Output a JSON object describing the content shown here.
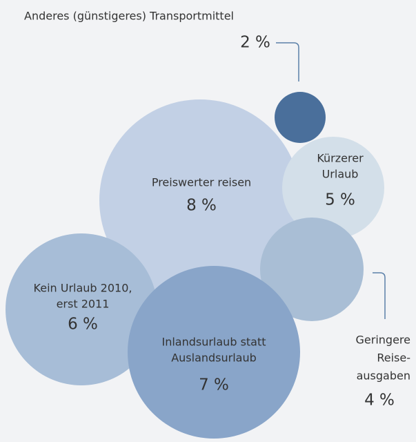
{
  "chart_data": {
    "type": "bubble",
    "items": [
      {
        "label": [
          "Preiswerter reisen"
        ],
        "value": 8,
        "value_label": "8 %",
        "color": "#bfcde4"
      },
      {
        "label": [
          "Kürzerer",
          "Urlaub"
        ],
        "value": 5,
        "value_label": "5 %",
        "color": "#d3dfe9"
      },
      {
        "label": [
          "Geringere",
          "Reise-",
          "ausgaben"
        ],
        "value": 4,
        "value_label": "4 %",
        "color": "#a9bed5"
      },
      {
        "label": [
          "Kein Urlaub 2010,",
          "erst 2011"
        ],
        "value": 6,
        "value_label": "6 %",
        "color": "#a7bdd7"
      },
      {
        "label": [
          "Inlandsurlaub statt",
          "Auslandsurlaub"
        ],
        "value": 7,
        "value_label": "7 %",
        "color": "#89a5c9"
      },
      {
        "label": [
          "Anderes (günstigeres) Transportmittel"
        ],
        "value": 2,
        "value_label": "2 %",
        "color": "#4a6f9b"
      }
    ]
  }
}
